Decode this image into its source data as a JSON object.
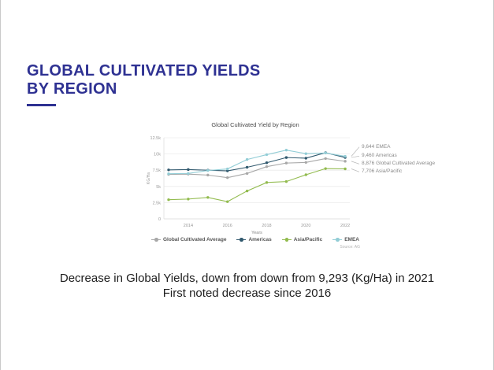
{
  "slide": {
    "title_line1": "GLOBAL CULTIVATED YIELDS",
    "title_line2": "BY REGION",
    "accent_color": "#2e3192",
    "caption_line1": "Decrease in Global Yields, down from down from 9,293 (Kg/Ha) in 2021",
    "caption_line2": "First noted decrease since 2016"
  },
  "chart_data": {
    "type": "line",
    "title": "Global Cultivated Yield by Region",
    "xlabel": "Years",
    "ylabel": "KG/Ha",
    "x": [
      2013,
      2014,
      2015,
      2016,
      2017,
      2018,
      2019,
      2020,
      2021,
      2022
    ],
    "xticks": [
      {
        "label": "2014",
        "value": 2014
      },
      {
        "label": "2016",
        "value": 2016
      },
      {
        "label": "2018",
        "value": 2018
      },
      {
        "label": "2020",
        "value": 2020
      },
      {
        "label": "2022",
        "value": 2022
      }
    ],
    "yticks": [
      {
        "label": "12.5k",
        "value": 12500
      },
      {
        "label": "10k",
        "value": 10000
      },
      {
        "label": "7.5k",
        "value": 7500
      },
      {
        "label": "5k",
        "value": 5000
      },
      {
        "label": "2.5k",
        "value": 2500
      },
      {
        "label": "0",
        "value": 0
      }
    ],
    "ylim": [
      0,
      12500
    ],
    "xlim": [
      2013,
      2022
    ],
    "grid": true,
    "legend_position": "bottom",
    "series": [
      {
        "name": "Global Cultivated Average",
        "color": "#a8a8a8",
        "values": [
          6850,
          6900,
          6750,
          6350,
          7000,
          8050,
          8600,
          8700,
          9293,
          8876
        ]
      },
      {
        "name": "Americas",
        "color": "#31596e",
        "values": [
          7550,
          7600,
          7500,
          7400,
          7950,
          8650,
          9450,
          9350,
          10200,
          9460
        ]
      },
      {
        "name": "Asia/Pacific",
        "color": "#92bb4e",
        "values": [
          2950,
          3050,
          3300,
          2650,
          4300,
          5600,
          5750,
          6800,
          7750,
          7706
        ]
      },
      {
        "name": "EMEA",
        "color": "#92cdd6",
        "values": [
          6950,
          7000,
          7450,
          7700,
          9150,
          9900,
          10600,
          10050,
          10150,
          9644
        ]
      }
    ],
    "annotations": [
      {
        "text": "9,644 EMEA",
        "series": "EMEA"
      },
      {
        "text": "9,460 Americas",
        "series": "Americas"
      },
      {
        "text": "8,876 Global Cultivated Average",
        "series": "Global Cultivated Average"
      },
      {
        "text": "7,706 Asia/Pacific",
        "series": "Asia/Pacific"
      }
    ],
    "source": "Source: AG"
  }
}
